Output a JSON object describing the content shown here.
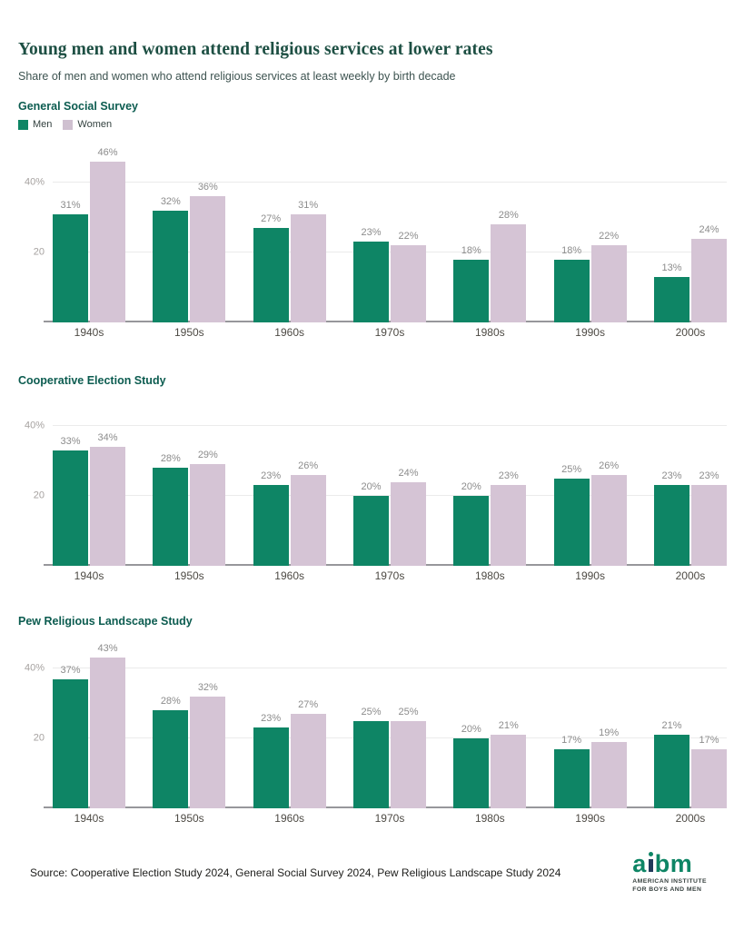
{
  "header": {
    "title": "Young men and women attend religious services at lower rates",
    "subtitle": "Share of men and women who attend religious services at least weekly by birth decade"
  },
  "legend": {
    "men": "Men",
    "women": "Women"
  },
  "colors": {
    "men": "#0e8565",
    "women": "#d5c4d5"
  },
  "chart_data": [
    {
      "type": "bar",
      "title": "General Social Survey",
      "categories": [
        "1940s",
        "1950s",
        "1960s",
        "1970s",
        "1980s",
        "1990s",
        "2000s"
      ],
      "series": [
        {
          "key": "men",
          "name": "Men",
          "values": [
            31,
            32,
            27,
            23,
            18,
            18,
            13
          ]
        },
        {
          "key": "women",
          "name": "Women",
          "values": [
            46,
            36,
            31,
            22,
            28,
            22,
            24
          ]
        }
      ],
      "xlabel": "",
      "ylabel": "",
      "ylim": [
        0,
        50
      ],
      "yticks": [
        {
          "value": 20,
          "label": "20"
        },
        {
          "value": 40,
          "label": "40%"
        }
      ],
      "value_suffix": "%",
      "legend_position": "top-left",
      "grid": "horizontal"
    },
    {
      "type": "bar",
      "title": "Cooperative Election Study",
      "categories": [
        "1940s",
        "1950s",
        "1960s",
        "1970s",
        "1980s",
        "1990s",
        "2000s"
      ],
      "series": [
        {
          "key": "men",
          "name": "Men",
          "values": [
            33,
            28,
            23,
            20,
            20,
            25,
            23
          ]
        },
        {
          "key": "women",
          "name": "Women",
          "values": [
            34,
            29,
            26,
            24,
            23,
            26,
            23
          ]
        }
      ],
      "xlabel": "",
      "ylabel": "",
      "ylim": [
        0,
        44
      ],
      "yticks": [
        {
          "value": 20,
          "label": "20"
        },
        {
          "value": 40,
          "label": "40%"
        }
      ],
      "value_suffix": "%",
      "legend_position": "none",
      "grid": "horizontal"
    },
    {
      "type": "bar",
      "title": "Pew Religious Landscape Study",
      "categories": [
        "1940s",
        "1950s",
        "1960s",
        "1970s",
        "1980s",
        "1990s",
        "2000s"
      ],
      "series": [
        {
          "key": "men",
          "name": "Men",
          "values": [
            37,
            28,
            23,
            25,
            20,
            17,
            21
          ]
        },
        {
          "key": "women",
          "name": "Women",
          "values": [
            43,
            32,
            27,
            25,
            21,
            19,
            17
          ]
        }
      ],
      "xlabel": "",
      "ylabel": "",
      "ylim": [
        0,
        48
      ],
      "yticks": [
        {
          "value": 20,
          "label": "20"
        },
        {
          "value": 40,
          "label": "40%"
        }
      ],
      "value_suffix": "%",
      "legend_position": "none",
      "grid": "horizontal"
    }
  ],
  "footer": {
    "source": "Source: Cooperative Election Study 2024, General Social Survey 2024, Pew Religious Landscape Study 2024",
    "logo": {
      "wordmark": "aibm",
      "word_a": "a",
      "word_bm": "bm",
      "tagline_line1": "AMERICAN INSTITUTE",
      "tagline_line2": "FOR BOYS AND MEN"
    }
  }
}
